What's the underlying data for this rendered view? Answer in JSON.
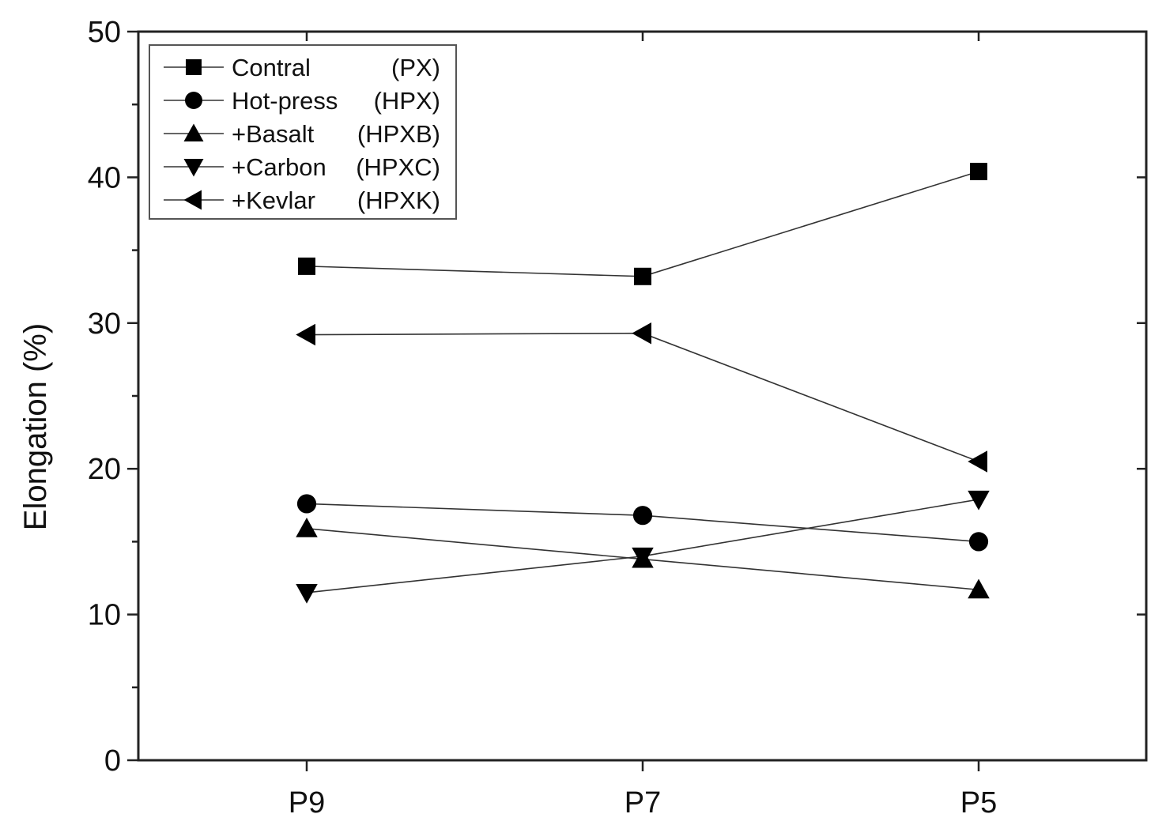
{
  "chart_data": {
    "type": "line",
    "ylabel": "Elongation (%)",
    "xlabel": "",
    "categories": [
      "P9",
      "P7",
      "P5"
    ],
    "ylim": [
      0,
      50
    ],
    "yticks": [
      0,
      10,
      20,
      30,
      40,
      50
    ],
    "grid": false,
    "legend_position": "top-left",
    "series": [
      {
        "name": "Contral",
        "code": "(PX)",
        "marker": "square",
        "values": [
          33.9,
          33.2,
          40.4
        ]
      },
      {
        "name": "Hot-press",
        "code": "(HPX)",
        "marker": "circle",
        "values": [
          17.6,
          16.8,
          15.0
        ]
      },
      {
        "name": "+Basalt",
        "code": "(HPXB)",
        "marker": "triangle-up",
        "values": [
          15.9,
          13.8,
          11.7
        ]
      },
      {
        "name": "+Carbon",
        "code": "(HPXC)",
        "marker": "triangle-down",
        "values": [
          11.5,
          14.0,
          17.9
        ]
      },
      {
        "name": "+Kevlar",
        "code": "(HPXK)",
        "marker": "triangle-left",
        "values": [
          29.2,
          29.3,
          20.5
        ]
      }
    ]
  }
}
